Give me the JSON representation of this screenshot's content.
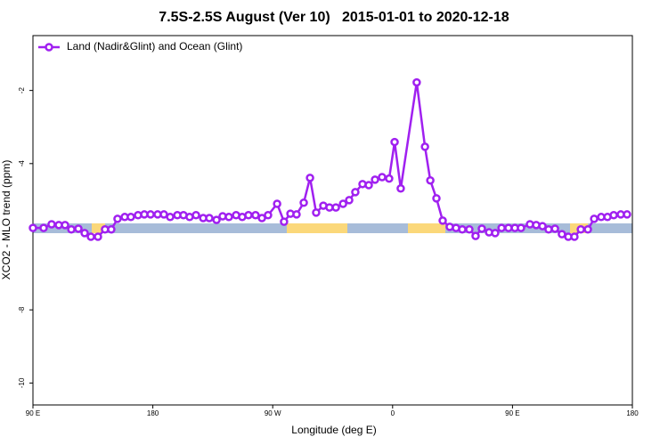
{
  "chart_data": {
    "type": "line",
    "title": "7.5S-2.5S August (Ver 10)   2015-01-01 to 2020-12-18",
    "x_label": "Longitude (deg E)",
    "y_label": "XCO2 - MLO trend (ppm)",
    "legend": "upper left",
    "xlim": [
      90,
      540
    ],
    "xticks": [
      {
        "value": 90,
        "label": "90 E"
      },
      180,
      {
        "value": 270,
        "label": "90 W"
      },
      {
        "value": 360,
        "label": "0"
      },
      {
        "value": 450,
        "label": "90 E"
      },
      {
        "value": 540,
        "label": "180"
      }
    ],
    "ylim": [
      -10.6,
      -0.5
    ],
    "yticks": [
      -2,
      -4,
      -8,
      -10
    ],
    "x": [
      90,
      98.0,
      104.0,
      109.4,
      114.1,
      118.8,
      124.1,
      128.8,
      133.5,
      138.8,
      144.1,
      148.8,
      153.5,
      158.9,
      163.5,
      168.9,
      173.6,
      178.3,
      183.6,
      188.3,
      193.0,
      198.4,
      203.0,
      207.6,
      212.4,
      217.8,
      222.4,
      227.8,
      232.4,
      237.1,
      242.5,
      247.1,
      251.8,
      257.1,
      261.9,
      266.5,
      273.3,
      278.5,
      283.3,
      287.9,
      293.3,
      298.0,
      302.6,
      308.0,
      312.6,
      317.4,
      322.8,
      327.4,
      332.0,
      337.4,
      342.1,
      346.8,
      352.1,
      357.4,
      361.5,
      366.1,
      378.1,
      384.3,
      388.3,
      392.9,
      397.6,
      402.9,
      407.6,
      412.3,
      417.6,
      422.3,
      427.0,
      432.4,
      437.0,
      441.8,
      447.0,
      451.8,
      456.4,
      463.1,
      467.8,
      472.5,
      477.1,
      481.9,
      487.1,
      491.9,
      496.5,
      501.3,
      506.6,
      511.3,
      516.6,
      521.3,
      526.0,
      531.3,
      536.0
    ],
    "series": [
      {
        "name": "Land (Nadir&Glint) and Ocean (Glint)",
        "color": "#a020f0",
        "values": [
          -5.76,
          -5.76,
          -5.66,
          -5.68,
          -5.68,
          -5.8,
          -5.78,
          -5.9,
          -6.0,
          -6.0,
          -5.8,
          -5.8,
          -5.51,
          -5.46,
          -5.46,
          -5.41,
          -5.39,
          -5.39,
          -5.39,
          -5.39,
          -5.46,
          -5.41,
          -5.41,
          -5.46,
          -5.41,
          -5.49,
          -5.49,
          -5.54,
          -5.44,
          -5.46,
          -5.41,
          -5.46,
          -5.41,
          -5.41,
          -5.49,
          -5.41,
          -5.1,
          -5.59,
          -5.37,
          -5.39,
          -5.07,
          -4.39,
          -5.34,
          -5.15,
          -5.2,
          -5.2,
          -5.1,
          -5.0,
          -4.78,
          -4.56,
          -4.59,
          -4.44,
          -4.37,
          -4.41,
          -3.41,
          -4.68,
          -1.78,
          -3.54,
          -4.46,
          -4.95,
          -5.56,
          -5.73,
          -5.76,
          -5.8,
          -5.8,
          -5.98,
          -5.78,
          -5.88,
          -5.9,
          -5.76,
          -5.76,
          -5.76,
          -5.76,
          -5.66,
          -5.68,
          -5.71,
          -5.8,
          -5.78,
          -5.93,
          -6.0,
          -6.0,
          -5.8,
          -5.8,
          -5.51,
          -5.46,
          -5.46,
          -5.41,
          -5.39,
          -5.39
        ]
      }
    ]
  }
}
